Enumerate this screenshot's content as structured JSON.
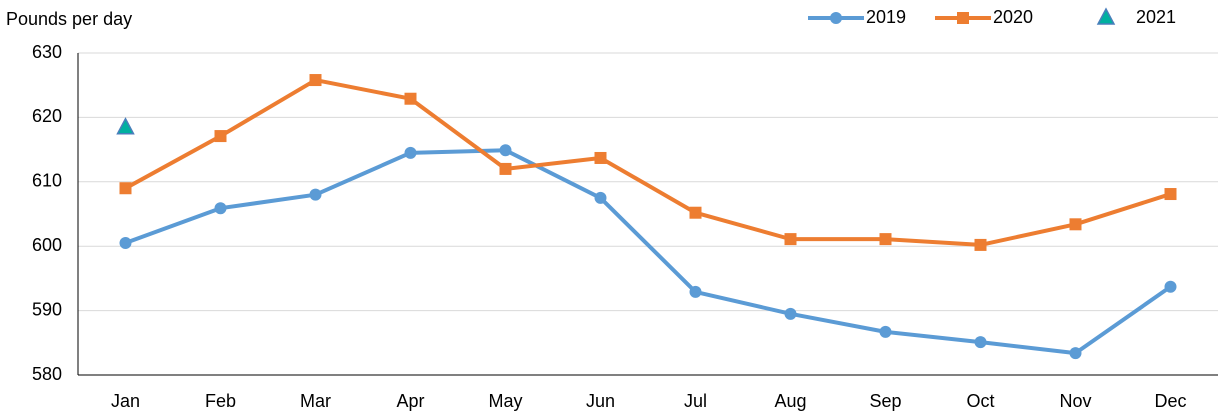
{
  "chart_data": {
    "type": "line",
    "y_axis_label": "Pounds per day",
    "categories": [
      "Jan",
      "Feb",
      "Mar",
      "Apr",
      "May",
      "Jun",
      "Jul",
      "Aug",
      "Sep",
      "Oct",
      "Nov",
      "Dec"
    ],
    "series": [
      {
        "name": "2019",
        "color": "#5b9bd5",
        "marker": "circle",
        "line": true,
        "values": [
          600.5,
          605.9,
          608.0,
          614.5,
          614.9,
          607.5,
          592.9,
          589.5,
          586.7,
          585.1,
          583.4,
          593.7
        ]
      },
      {
        "name": "2020",
        "color": "#ed7d31",
        "marker": "square",
        "line": true,
        "values": [
          609.0,
          617.1,
          625.8,
          622.9,
          612.0,
          613.7,
          605.2,
          601.1,
          601.1,
          600.2,
          603.4,
          608.1
        ]
      },
      {
        "name": "2021",
        "color": "#00b0a0",
        "marker": "triangle",
        "line": false,
        "values": [
          618.4,
          null,
          null,
          null,
          null,
          null,
          null,
          null,
          null,
          null,
          null,
          null
        ]
      }
    ],
    "ylim": [
      580,
      630
    ],
    "yticks": [
      580,
      590,
      600,
      610,
      620,
      630
    ],
    "grid": true,
    "legend": "top-right"
  }
}
